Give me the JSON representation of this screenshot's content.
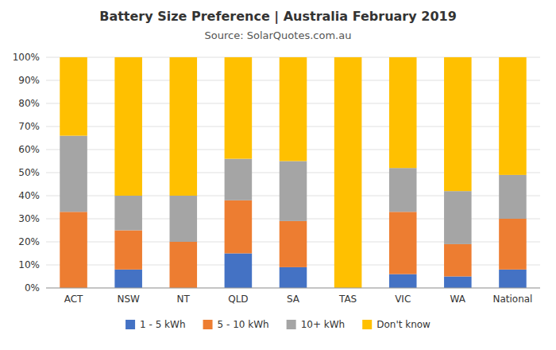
{
  "chart_data": {
    "type": "bar",
    "stacked": true,
    "title": "Battery Size Preference  |  Australia February 2019",
    "subtitle": "Source: SolarQuotes.com.au",
    "categories": [
      "ACT",
      "NSW",
      "NT",
      "QLD",
      "SA",
      "TAS",
      "VIC",
      "WA",
      "National"
    ],
    "series": [
      {
        "name": "1 - 5 kWh",
        "color": "#4472C4",
        "values": [
          0,
          8,
          0,
          15,
          9,
          0,
          6,
          5,
          8
        ]
      },
      {
        "name": "5 - 10 kWh",
        "color": "#ED7D31",
        "values": [
          33,
          17,
          20,
          23,
          20,
          0,
          27,
          14,
          22
        ]
      },
      {
        "name": "10+ kWh",
        "color": "#A5A5A5",
        "values": [
          33,
          15,
          20,
          18,
          26,
          0,
          19,
          23,
          19
        ]
      },
      {
        "name": "Don't know",
        "color": "#FFC000",
        "values": [
          34,
          60,
          60,
          44,
          45,
          100,
          48,
          58,
          51
        ]
      }
    ],
    "ylim": [
      0,
      100
    ],
    "yticks": [
      {
        "value": 0,
        "label": "0%"
      },
      {
        "value": 10,
        "label": "10%"
      },
      {
        "value": 20,
        "label": "20%"
      },
      {
        "value": 30,
        "label": "30%"
      },
      {
        "value": 40,
        "label": "40%"
      },
      {
        "value": 50,
        "label": "50%"
      },
      {
        "value": 60,
        "label": "60%"
      },
      {
        "value": 70,
        "label": "70%"
      },
      {
        "value": 80,
        "label": "80%"
      },
      {
        "value": 90,
        "label": "90%"
      },
      {
        "value": 100,
        "label": "100%"
      }
    ],
    "grid": true,
    "legend": "bottom"
  }
}
